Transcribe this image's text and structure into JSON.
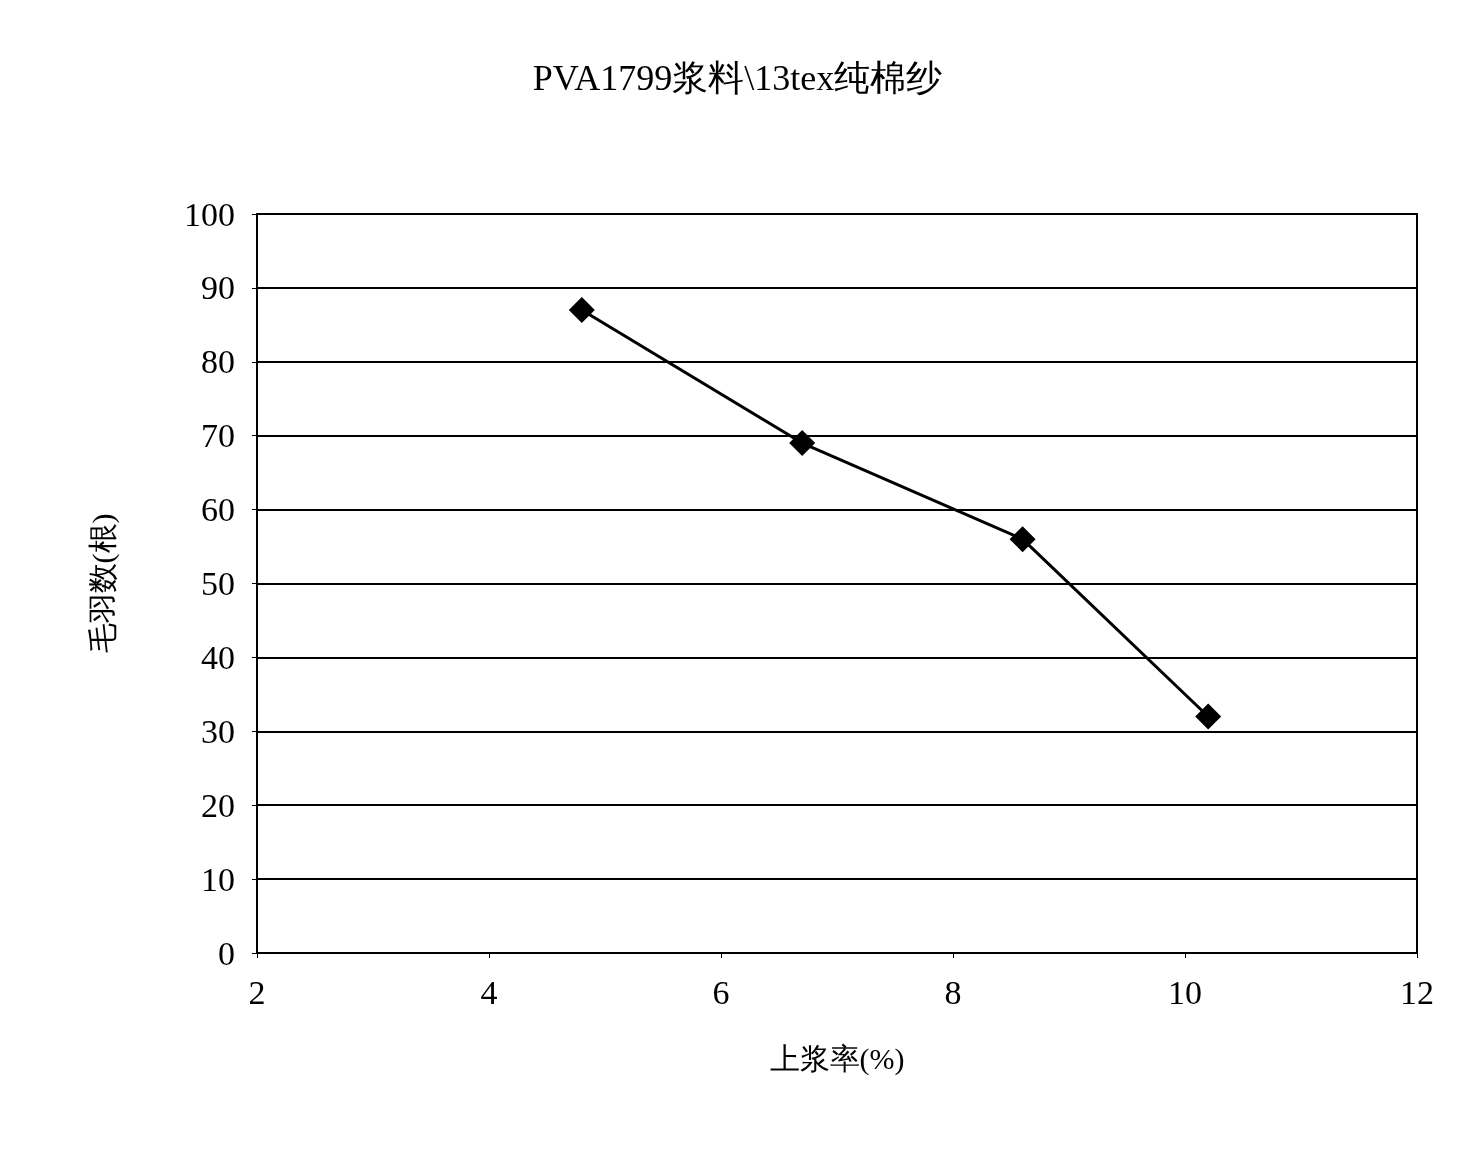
{
  "chart_data": {
    "type": "line",
    "title": "PVA1799浆料\\13tex纯棉纱",
    "xlabel": "上浆率(%)",
    "ylabel": "毛羽数(根)",
    "x": [
      4.8,
      6.7,
      8.6,
      10.2
    ],
    "series": [
      {
        "color": "#000000",
        "values": [
          87,
          69,
          56,
          32
        ]
      }
    ],
    "xlim": [
      2,
      12
    ],
    "xticks": [
      2,
      4,
      6,
      8,
      10,
      12
    ],
    "ylim": [
      0,
      100
    ],
    "yticks": [
      0,
      10,
      20,
      30,
      40,
      50,
      60,
      70,
      80,
      90,
      100
    ],
    "grid": "y",
    "marker": "diamond",
    "line_style": "solid"
  }
}
